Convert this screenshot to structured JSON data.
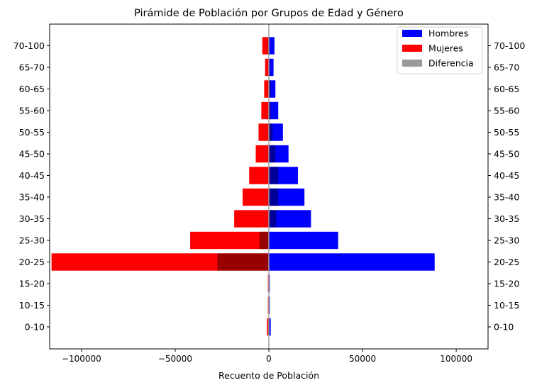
{
  "chart_data": {
    "type": "bar",
    "orientation": "horizontal",
    "title": "Pirámide de Población por Grupos de Edad y Género",
    "xlabel": "Recuento de Población",
    "ylabel": "",
    "xlim": [
      -117000,
      117000
    ],
    "x_ticks": [
      -100000,
      -50000,
      0,
      50000,
      100000
    ],
    "x_tick_labels": [
      "−100000",
      "−50000",
      "0",
      "50000",
      "100000"
    ],
    "categories": [
      "0-10",
      "10-15",
      "15-20",
      "20-25",
      "25-30",
      "30-35",
      "35-40",
      "40-45",
      "45-50",
      "50-55",
      "55-60",
      "60-65",
      "65-70",
      "70-100"
    ],
    "series": [
      {
        "name": "Hombres",
        "color": "#0000ff",
        "values": [
          1000,
          500,
          500,
          88500,
          37000,
          22500,
          19000,
          15500,
          10500,
          7500,
          5000,
          3500,
          2500,
          3000
        ]
      },
      {
        "name": "Mujeres",
        "color": "#ff0000",
        "values": [
          -1000,
          -500,
          -500,
          -116000,
          -42000,
          -18500,
          -14000,
          -10500,
          -7000,
          -5500,
          -4000,
          -2500,
          -2000,
          -3500
        ]
      },
      {
        "name": "Diferencia",
        "color": "#999999",
        "values": [
          0,
          0,
          0,
          -27500,
          -5000,
          4000,
          5000,
          5000,
          3500,
          2000,
          1000,
          1000,
          500,
          -500
        ]
      }
    ],
    "legend_position": "top-right",
    "grid": false,
    "y_labels_both_sides": true,
    "center_line": true
  }
}
